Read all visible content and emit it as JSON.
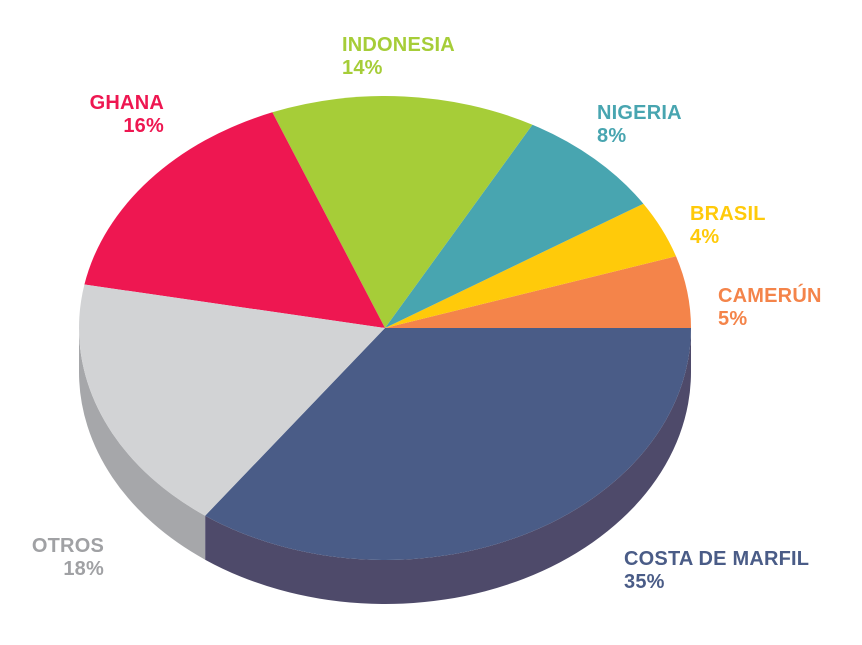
{
  "chart_data": {
    "type": "pie",
    "style": "3d-pie",
    "slices": [
      {
        "label": "COSTA DE MARFIL",
        "value": 35,
        "value_label": "35%",
        "color": "#4a5c87",
        "side_color": "#4e4a6a"
      },
      {
        "label": "CAMERÚN",
        "value": 5,
        "value_label": "5%",
        "color": "#f4844a",
        "side_color": "#c96a3b"
      },
      {
        "label": "BRASIL",
        "value": 4,
        "value_label": "4%",
        "color": "#ffca0a",
        "side_color": "#d4a808"
      },
      {
        "label": "NIGERIA",
        "value": 8,
        "value_label": "8%",
        "color": "#48a5b0",
        "side_color": "#3a8790"
      },
      {
        "label": "INDONESIA",
        "value": 14,
        "value_label": "14%",
        "color": "#a6cd38",
        "side_color": "#88aa2e"
      },
      {
        "label": "GHANA",
        "value": 16,
        "value_label": "16%",
        "color": "#ee1751",
        "side_color": "#c01343"
      },
      {
        "label": "OTROS",
        "value": 18,
        "value_label": "18%",
        "color": "#d2d3d5",
        "side_color": "#a6a7aa",
        "label_color": "#a0a1a4"
      }
    ]
  }
}
